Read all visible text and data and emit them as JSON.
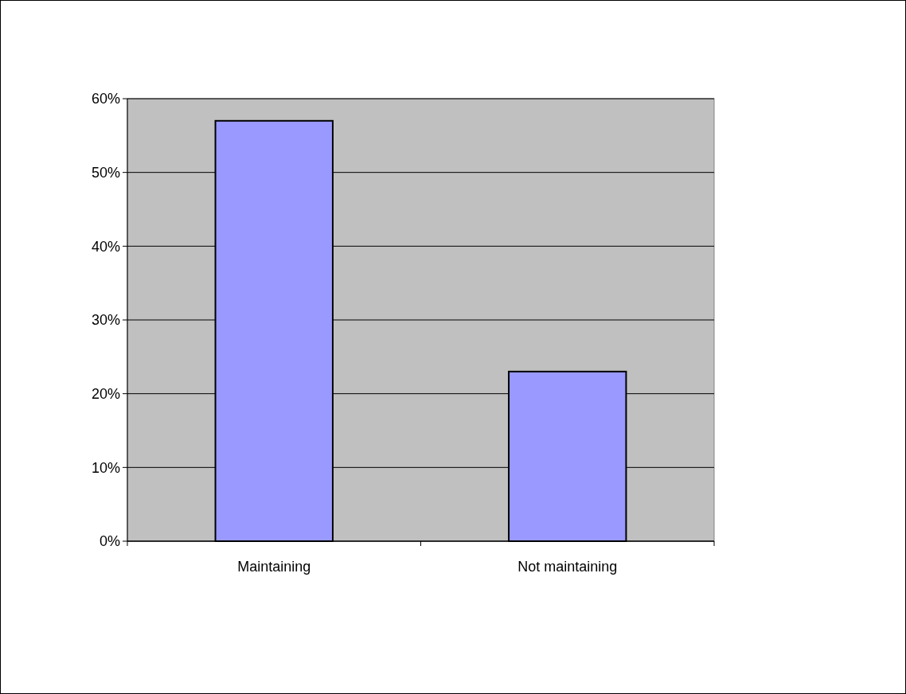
{
  "chart_data": {
    "type": "bar",
    "categories": [
      "Maintaining",
      "Not maintaining"
    ],
    "values": [
      57,
      23
    ],
    "color": "#9999ff",
    "ylim": [
      0,
      60
    ],
    "yticks": [
      {
        "value": 0,
        "label": "0%"
      },
      {
        "value": 10,
        "label": "10%"
      },
      {
        "value": 20,
        "label": "20%"
      },
      {
        "value": 30,
        "label": "30%"
      },
      {
        "value": 40,
        "label": "40%"
      },
      {
        "value": 50,
        "label": "50%"
      },
      {
        "value": 60,
        "label": "60%"
      }
    ],
    "grid": "y"
  }
}
